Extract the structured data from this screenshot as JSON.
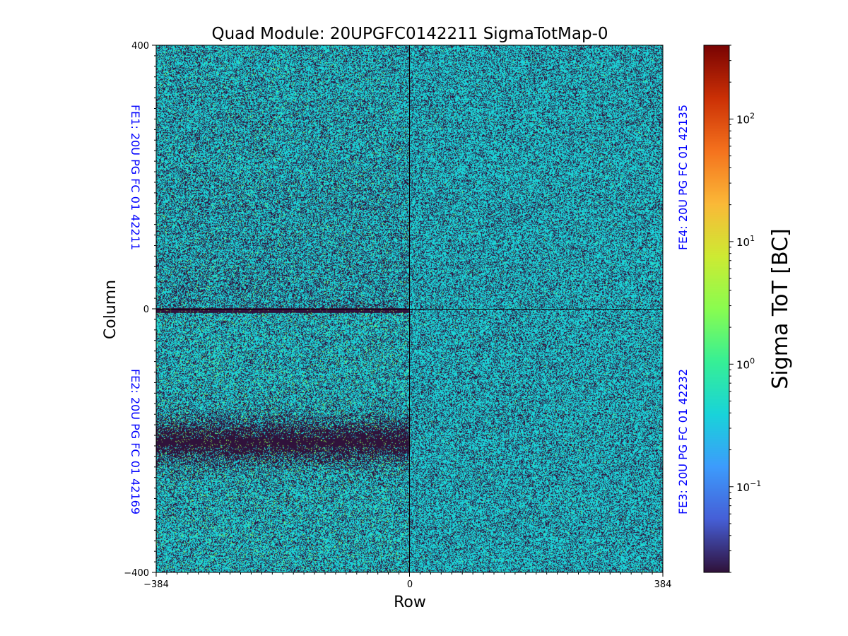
{
  "chart_data": {
    "type": "heatmap",
    "title": "Quad Module: 20UPGFC0142211 SigmaTotMap-0",
    "xlabel": "Row",
    "ylabel": "Column",
    "xlim": [
      -384,
      384
    ],
    "ylim": [
      -400,
      400
    ],
    "xticks": [
      "−384",
      "0",
      "384"
    ],
    "yticks": [
      "400",
      "0",
      "−400"
    ],
    "colorbar": {
      "label": "Sigma ToT [BC]",
      "scale": "log",
      "colormap": "turbo",
      "range": [
        0.02,
        400
      ],
      "ticks": [
        {
          "base": "10",
          "exp": "2"
        },
        {
          "base": "10",
          "exp": "1"
        },
        {
          "base": "10",
          "exp": "0"
        },
        {
          "base": "10",
          "exp": "−1"
        }
      ]
    },
    "chips": [
      {
        "label": "FE1: 20U PG FC 01 42211",
        "quadrant": "top-left",
        "typical_sigma": 0.4
      },
      {
        "label": "FE2: 20U PG FC 01 42169",
        "quadrant": "bottom-left",
        "typical_sigma": 0.4
      },
      {
        "label": "FE3: 20U PG FC 01 42232",
        "quadrant": "bottom-right",
        "typical_sigma": 0.4
      },
      {
        "label": "FE4: 20U PG FC 01 42135",
        "quadrant": "top-right",
        "typical_sigma": 0.4
      }
    ],
    "chip_label_color": "#0000ff",
    "grid": false
  }
}
